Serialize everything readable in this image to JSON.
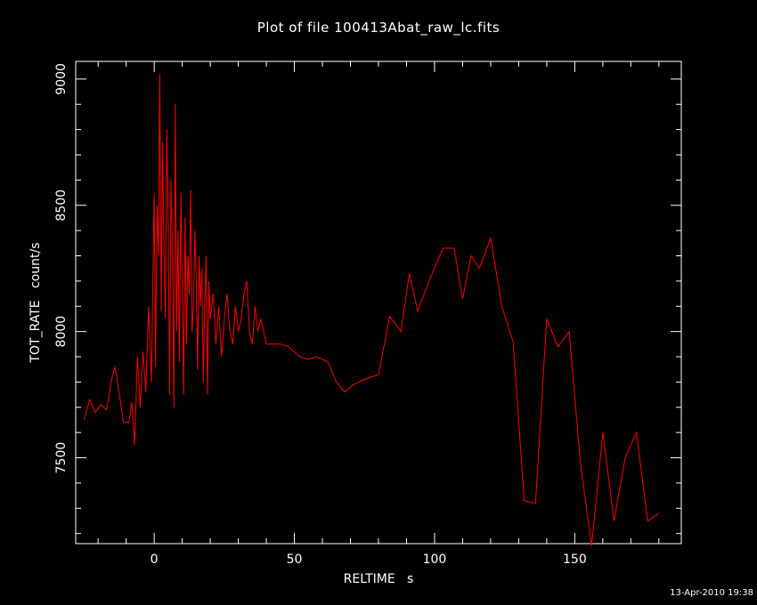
{
  "page": {
    "title": "Plot of file 100413Abat_raw_lc.fits",
    "timestamp": "13-Apr-2010 19:38"
  },
  "colors": {
    "background": "#000000",
    "axes": "#ffffff",
    "series": "#ff0000"
  },
  "chart_data": {
    "type": "line",
    "title": "Plot of file 100413Abat_raw_lc.fits",
    "xlabel": "RELTIME   s",
    "ylabel": "TOT_RATE   count/s",
    "xlim": [
      -28,
      188
    ],
    "ylim": [
      7160,
      9070
    ],
    "xticks": [
      0,
      50,
      100,
      150
    ],
    "yticks": [
      7500,
      8000,
      8500,
      9000
    ],
    "tick_labels_x": [
      "0",
      "50",
      "100",
      "150"
    ],
    "tick_labels_y": [
      "7500",
      "8000",
      "8500",
      "9000"
    ],
    "grid": false,
    "series": [
      {
        "x": [
          -25,
          -23,
          -21,
          -19,
          -17,
          -15,
          -14,
          -12,
          -11,
          -9,
          -8,
          -7,
          -6,
          -5,
          -4,
          -3,
          -2,
          -1,
          0,
          0.5,
          1,
          1.5,
          2,
          2.5,
          3,
          3.5,
          4,
          4.5,
          5,
          5.5,
          6,
          6.5,
          7,
          7.5,
          8,
          8.5,
          9,
          9.5,
          10,
          10.5,
          11,
          11.5,
          12,
          12.5,
          13,
          13.5,
          14,
          14.5,
          15,
          15.5,
          16,
          16.5,
          17,
          17.5,
          18,
          18.5,
          19,
          19.5,
          20,
          21,
          22,
          23,
          24,
          25,
          26,
          27,
          28,
          29,
          30,
          31,
          32,
          33,
          34,
          35,
          36,
          37,
          38,
          40,
          42,
          45,
          48,
          52,
          55,
          58,
          62,
          65,
          68,
          71,
          75,
          80,
          84,
          88,
          91,
          94,
          98,
          103,
          107,
          110,
          113,
          116,
          120,
          124,
          128,
          132,
          136,
          140,
          144,
          148,
          152,
          156,
          160,
          164,
          168,
          172,
          176,
          180
        ],
        "y": [
          7650,
          7730,
          7680,
          7710,
          7690,
          7820,
          7860,
          7720,
          7640,
          7640,
          7720,
          7550,
          7900,
          7700,
          7920,
          7760,
          8100,
          7800,
          8550,
          7860,
          8500,
          8300,
          9020,
          8080,
          8750,
          8300,
          8050,
          8800,
          8400,
          7750,
          8600,
          8350,
          7700,
          8900,
          8000,
          8400,
          7880,
          8550,
          8200,
          7750,
          8450,
          7950,
          8300,
          8150,
          8560,
          8000,
          8100,
          8400,
          8200,
          7850,
          8300,
          8100,
          8250,
          7800,
          8100,
          8300,
          7750,
          8200,
          8050,
          8150,
          7950,
          8100,
          7900,
          8050,
          8150,
          8000,
          7950,
          8100,
          8000,
          8050,
          8150,
          8200,
          8000,
          7950,
          8100,
          8000,
          8050,
          7950,
          7950,
          7950,
          7940,
          7900,
          7890,
          7900,
          7880,
          7800,
          7760,
          7790,
          7810,
          7830,
          8060,
          8000,
          8230,
          8080,
          8200,
          8330,
          8330,
          8130,
          8300,
          8250,
          8370,
          8100,
          7960,
          7330,
          7320,
          8050,
          7940,
          8000,
          7480,
          7150,
          7600,
          7250,
          7500,
          7600,
          7250,
          7280
        ]
      }
    ]
  }
}
